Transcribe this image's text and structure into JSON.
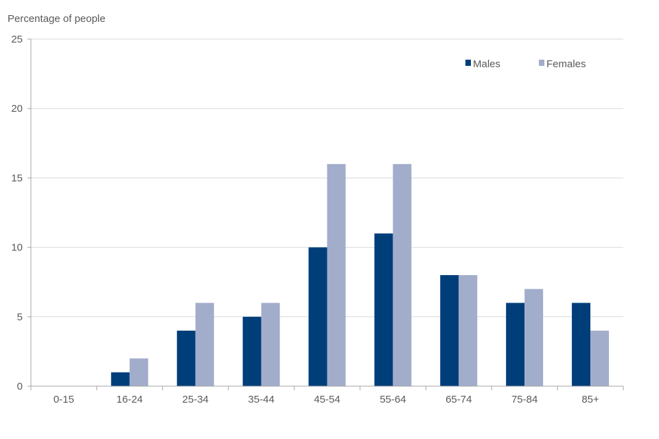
{
  "chart_data": {
    "type": "bar",
    "ylabel": "Percentage of people",
    "xlabel": "",
    "title": "",
    "categories": [
      "0-15",
      "16-24",
      "25-34",
      "35-44",
      "45-54",
      "55-64",
      "65-74",
      "75-84",
      "85+"
    ],
    "series": [
      {
        "name": "Males",
        "color": "#003e7a",
        "values": [
          0,
          1,
          4,
          5,
          10,
          11,
          8,
          6,
          6
        ]
      },
      {
        "name": "Females",
        "color": "#a2adcb",
        "values": [
          0,
          2,
          6,
          6,
          16,
          16,
          8,
          7,
          4
        ]
      }
    ],
    "ylim": [
      0,
      25
    ],
    "yticks": [
      0,
      5,
      10,
      15,
      20,
      25
    ],
    "grid": true,
    "legend_position": "top-right"
  }
}
